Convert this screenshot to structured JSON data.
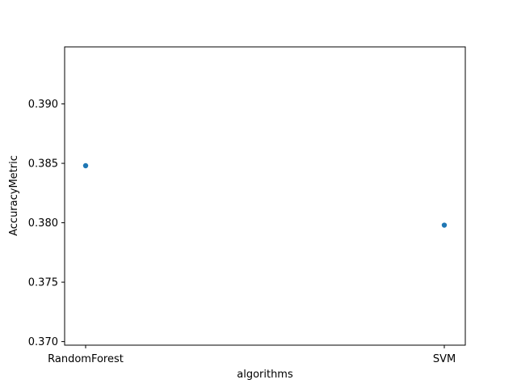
{
  "chart_data": {
    "type": "scatter",
    "title": "",
    "xlabel": "algorithms",
    "ylabel": "AccuracyMetric",
    "categories": [
      "RandomForest",
      "SVM"
    ],
    "series": [
      {
        "values": [
          0.3848,
          0.3798
        ],
        "color": "#1f77b4"
      }
    ],
    "ylim": [
      0.3697,
      0.3948
    ],
    "yticks": [
      0.37,
      0.375,
      0.38,
      0.385,
      0.39
    ],
    "ytick_labels": [
      "0.370",
      "0.375",
      "0.380",
      "0.385",
      "0.390"
    ],
    "grid": false,
    "legend": "none"
  }
}
